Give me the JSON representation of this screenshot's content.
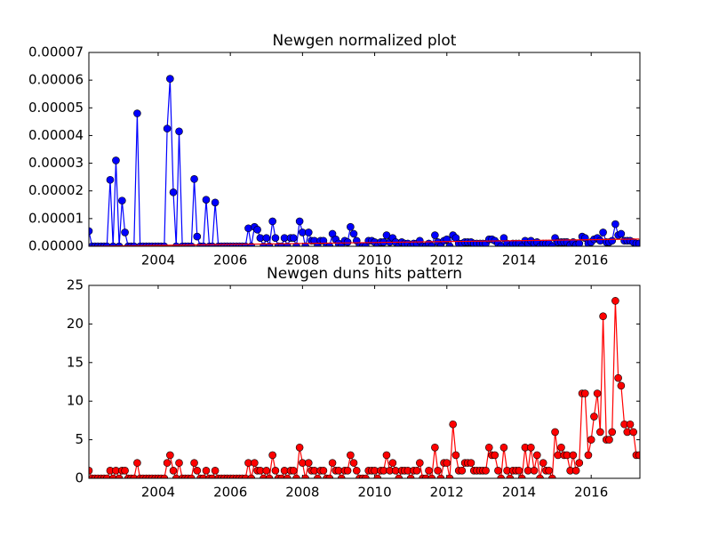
{
  "chart_data": [
    {
      "type": "line",
      "title": "Newgen normalized plot",
      "x": [
        2002.08,
        2002.17,
        2002.25,
        2002.33,
        2002.42,
        2002.5,
        2002.58,
        2002.67,
        2002.75,
        2002.83,
        2002.92,
        2003.0,
        2003.08,
        2003.17,
        2003.25,
        2003.33,
        2003.42,
        2003.5,
        2003.58,
        2003.67,
        2003.75,
        2003.83,
        2003.92,
        2004.0,
        2004.08,
        2004.17,
        2004.25,
        2004.33,
        2004.42,
        2004.5,
        2004.58,
        2004.67,
        2004.75,
        2004.83,
        2004.92,
        2005.0,
        2005.08,
        2005.17,
        2005.25,
        2005.33,
        2005.42,
        2005.5,
        2005.58,
        2005.67,
        2005.75,
        2005.83,
        2005.92,
        2006.0,
        2006.08,
        2006.17,
        2006.25,
        2006.33,
        2006.42,
        2006.5,
        2006.58,
        2006.67,
        2006.75,
        2006.83,
        2006.92,
        2007.0,
        2007.08,
        2007.17,
        2007.25,
        2007.33,
        2007.42,
        2007.5,
        2007.58,
        2007.67,
        2007.75,
        2007.83,
        2007.92,
        2008.0,
        2008.08,
        2008.17,
        2008.25,
        2008.33,
        2008.42,
        2008.5,
        2008.58,
        2008.67,
        2008.75,
        2008.83,
        2008.92,
        2009.0,
        2009.08,
        2009.17,
        2009.25,
        2009.33,
        2009.42,
        2009.5,
        2009.58,
        2009.67,
        2009.75,
        2009.83,
        2009.92,
        2010.0,
        2010.08,
        2010.17,
        2010.25,
        2010.33,
        2010.42,
        2010.5,
        2010.58,
        2010.67,
        2010.75,
        2010.83,
        2010.92,
        2011.0,
        2011.08,
        2011.17,
        2011.25,
        2011.33,
        2011.42,
        2011.5,
        2011.58,
        2011.67,
        2011.75,
        2011.83,
        2011.92,
        2012.0,
        2012.08,
        2012.17,
        2012.25,
        2012.33,
        2012.42,
        2012.5,
        2012.58,
        2012.67,
        2012.75,
        2012.83,
        2012.92,
        2013.0,
        2013.08,
        2013.17,
        2013.25,
        2013.33,
        2013.42,
        2013.5,
        2013.58,
        2013.67,
        2013.75,
        2013.83,
        2013.92,
        2014.0,
        2014.08,
        2014.17,
        2014.25,
        2014.33,
        2014.42,
        2014.5,
        2014.58,
        2014.67,
        2014.75,
        2014.83,
        2014.92,
        2015.0,
        2015.08,
        2015.17,
        2015.25,
        2015.33,
        2015.42,
        2015.5,
        2015.58,
        2015.67,
        2015.75,
        2015.83,
        2015.92,
        2016.0,
        2016.08,
        2016.17,
        2016.25,
        2016.33,
        2016.42,
        2016.5,
        2016.58,
        2016.67,
        2016.75,
        2016.83,
        2016.92,
        2017.0,
        2017.08,
        2017.17,
        2017.25,
        2017.33
      ],
      "series": [
        {
          "color": "#0000ff",
          "marker": true,
          "values": [
            5.5e-06,
            0,
            0,
            0,
            0,
            0,
            0,
            2.4e-05,
            0,
            3.1e-05,
            0,
            1.65e-05,
            5e-06,
            0,
            0,
            0,
            4.8e-05,
            0,
            0,
            0,
            0,
            0,
            0,
            0,
            0,
            0,
            4.25e-05,
            6.05e-05,
            1.95e-05,
            0,
            4.15e-05,
            0,
            0,
            0,
            0,
            2.43e-05,
            3.5e-06,
            0,
            0,
            1.68e-05,
            0,
            0,
            1.58e-05,
            0,
            0,
            0,
            0,
            0,
            0,
            0,
            0,
            0,
            0,
            6.5e-06,
            0,
            7e-06,
            6e-06,
            3e-06,
            0,
            3e-06,
            0,
            9e-06,
            3e-06,
            0,
            0,
            3e-06,
            0,
            3e-06,
            3e-06,
            0,
            9e-06,
            5e-06,
            0,
            5e-06,
            2e-06,
            2e-06,
            0,
            2e-06,
            2e-06,
            0,
            0,
            4.5e-06,
            2.5e-06,
            1e-06,
            0,
            2e-06,
            1.5e-06,
            7e-06,
            4.5e-06,
            2e-06,
            0,
            0,
            0,
            2e-06,
            2e-06,
            1.5e-06,
            0,
            1.5e-06,
            1.5e-06,
            4e-06,
            1.5e-06,
            3e-06,
            1.5e-06,
            0,
            1.5e-06,
            1e-06,
            1e-06,
            0,
            1e-06,
            1e-06,
            2e-06,
            0,
            0,
            1e-06,
            0,
            4e-06,
            1.5e-06,
            0,
            2e-06,
            2.5e-06,
            0,
            4e-06,
            3e-06,
            1e-06,
            1e-06,
            1.5e-06,
            1.5e-06,
            1.5e-06,
            1e-06,
            1e-06,
            1e-06,
            1e-06,
            1e-06,
            2.5e-06,
            2.5e-06,
            2e-06,
            1e-06,
            0,
            3e-06,
            1e-06,
            0,
            1e-06,
            1e-06,
            1e-06,
            0,
            2e-06,
            1e-06,
            2e-06,
            1e-06,
            1.5e-06,
            0,
            1e-06,
            1e-06,
            1e-06,
            0,
            3e-06,
            1.5e-06,
            1.5e-06,
            1.5e-06,
            1.5e-06,
            5e-07,
            1.5e-06,
            5e-07,
            1e-06,
            3.5e-06,
            3e-06,
            1e-06,
            1.5e-06,
            2.5e-06,
            3e-06,
            2e-06,
            5e-06,
            1.5e-06,
            1.5e-06,
            2e-06,
            8e-06,
            4e-06,
            4.5e-06,
            2e-06,
            2e-06,
            2e-06,
            1.5e-06,
            1e-06,
            1e-06
          ]
        },
        {
          "color": "#ff0000",
          "marker": false,
          "x": [
            2002.08,
            2017.33
          ],
          "values": [
            0,
            2.6e-06
          ]
        }
      ],
      "xlim": [
        2002.08,
        2017.35
      ],
      "xticks": [
        2004,
        2006,
        2008,
        2010,
        2012,
        2014,
        2016
      ],
      "ylim": [
        0,
        7e-05
      ],
      "yticks": [
        {
          "value": 0,
          "label": "0.00000"
        },
        {
          "value": 1e-05,
          "label": "0.00001"
        },
        {
          "value": 2e-05,
          "label": "0.00002"
        },
        {
          "value": 3e-05,
          "label": "0.00003"
        },
        {
          "value": 4e-05,
          "label": "0.00004"
        },
        {
          "value": 5e-05,
          "label": "0.00005"
        },
        {
          "value": 6e-05,
          "label": "0.00006"
        },
        {
          "value": 7e-05,
          "label": "0.00007"
        }
      ],
      "grid": false
    },
    {
      "type": "line",
      "title": "Newgen duns hits pattern",
      "x": [
        2002.08,
        2002.17,
        2002.25,
        2002.33,
        2002.42,
        2002.5,
        2002.58,
        2002.67,
        2002.75,
        2002.83,
        2002.92,
        2003.0,
        2003.08,
        2003.17,
        2003.25,
        2003.33,
        2003.42,
        2003.5,
        2003.58,
        2003.67,
        2003.75,
        2003.83,
        2003.92,
        2004.0,
        2004.08,
        2004.17,
        2004.25,
        2004.33,
        2004.42,
        2004.5,
        2004.58,
        2004.67,
        2004.75,
        2004.83,
        2004.92,
        2005.0,
        2005.08,
        2005.17,
        2005.25,
        2005.33,
        2005.42,
        2005.5,
        2005.58,
        2005.67,
        2005.75,
        2005.83,
        2005.92,
        2006.0,
        2006.08,
        2006.17,
        2006.25,
        2006.33,
        2006.42,
        2006.5,
        2006.58,
        2006.67,
        2006.75,
        2006.83,
        2006.92,
        2007.0,
        2007.08,
        2007.17,
        2007.25,
        2007.33,
        2007.42,
        2007.5,
        2007.58,
        2007.67,
        2007.75,
        2007.83,
        2007.92,
        2008.0,
        2008.08,
        2008.17,
        2008.25,
        2008.33,
        2008.42,
        2008.5,
        2008.58,
        2008.67,
        2008.75,
        2008.83,
        2008.92,
        2009.0,
        2009.08,
        2009.17,
        2009.25,
        2009.33,
        2009.42,
        2009.5,
        2009.58,
        2009.67,
        2009.75,
        2009.83,
        2009.92,
        2010.0,
        2010.08,
        2010.17,
        2010.25,
        2010.33,
        2010.42,
        2010.5,
        2010.58,
        2010.67,
        2010.75,
        2010.83,
        2010.92,
        2011.0,
        2011.08,
        2011.17,
        2011.25,
        2011.33,
        2011.42,
        2011.5,
        2011.58,
        2011.67,
        2011.75,
        2011.83,
        2011.92,
        2012.0,
        2012.08,
        2012.17,
        2012.25,
        2012.33,
        2012.42,
        2012.5,
        2012.58,
        2012.67,
        2012.75,
        2012.83,
        2012.92,
        2013.0,
        2013.08,
        2013.17,
        2013.25,
        2013.33,
        2013.42,
        2013.5,
        2013.58,
        2013.67,
        2013.75,
        2013.83,
        2013.92,
        2014.0,
        2014.08,
        2014.17,
        2014.25,
        2014.33,
        2014.42,
        2014.5,
        2014.58,
        2014.67,
        2014.75,
        2014.83,
        2014.92,
        2015.0,
        2015.08,
        2015.17,
        2015.25,
        2015.33,
        2015.42,
        2015.5,
        2015.58,
        2015.67,
        2015.75,
        2015.83,
        2015.92,
        2016.0,
        2016.08,
        2016.17,
        2016.25,
        2016.33,
        2016.42,
        2016.5,
        2016.58,
        2016.67,
        2016.75,
        2016.83,
        2016.92,
        2017.0,
        2017.08,
        2017.17,
        2017.25,
        2017.33
      ],
      "series": [
        {
          "color": "#ff0000",
          "marker": true,
          "values": [
            1,
            0,
            0,
            0,
            0,
            0,
            0,
            1,
            0,
            1,
            0,
            1,
            1,
            0,
            0,
            0,
            2,
            0,
            0,
            0,
            0,
            0,
            0,
            0,
            0,
            0,
            2,
            3,
            1,
            0,
            2,
            0,
            0,
            0,
            0,
            2,
            1,
            0,
            0,
            1,
            0,
            0,
            1,
            0,
            0,
            0,
            0,
            0,
            0,
            0,
            0,
            0,
            0,
            2,
            0,
            2,
            1,
            1,
            0,
            1,
            0,
            3,
            1,
            0,
            0,
            1,
            0,
            1,
            1,
            0,
            4,
            2,
            0,
            2,
            1,
            1,
            0,
            1,
            1,
            0,
            0,
            2,
            1,
            1,
            0,
            1,
            1,
            3,
            2,
            1,
            0,
            0,
            0,
            1,
            1,
            1,
            0,
            1,
            1,
            3,
            1,
            2,
            1,
            0,
            1,
            1,
            1,
            0,
            1,
            1,
            2,
            0,
            0,
            1,
            0,
            4,
            1,
            0,
            2,
            2,
            0,
            7,
            3,
            1,
            1,
            2,
            2,
            2,
            1,
            1,
            1,
            1,
            1,
            4,
            3,
            3,
            1,
            0,
            4,
            1,
            0,
            1,
            1,
            1,
            0,
            4,
            1,
            4,
            1,
            3,
            0,
            2,
            1,
            1,
            0,
            6,
            3,
            4,
            3,
            3,
            1,
            3,
            1,
            2,
            11,
            11,
            3,
            5,
            8,
            11,
            6,
            21,
            5,
            5,
            6,
            23,
            13,
            12,
            7,
            6,
            7,
            6,
            3,
            3
          ]
        }
      ],
      "xlim": [
        2002.08,
        2017.35
      ],
      "xticks": [
        2004,
        2006,
        2008,
        2010,
        2012,
        2014,
        2016
      ],
      "ylim": [
        0,
        25
      ],
      "yticks": [
        0,
        5,
        10,
        15,
        20,
        25
      ],
      "grid": false
    }
  ]
}
